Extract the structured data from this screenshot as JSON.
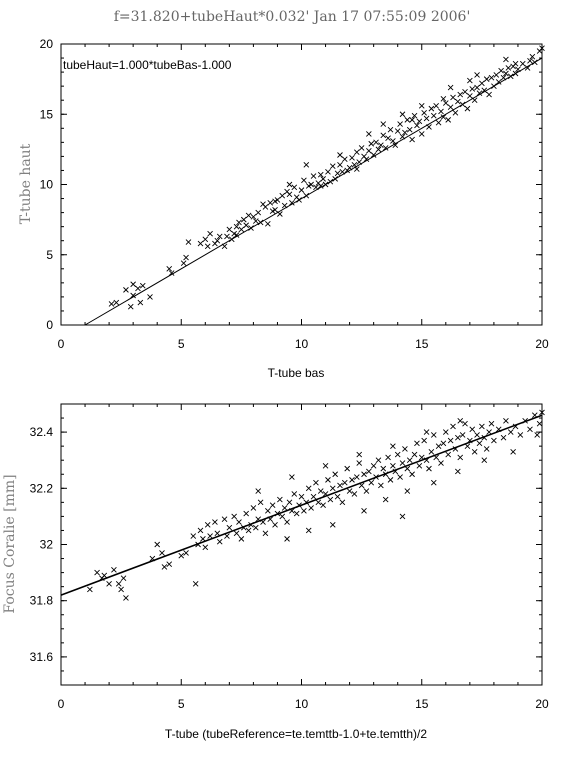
{
  "title": "f=31.820+tubeHaut*0.032'   Jan 17 07:55:09 2006'",
  "chart_data": [
    {
      "type": "scatter",
      "xlabel": "T-tube bas",
      "ylabel": "T-tube haut",
      "annotation": "tubeHaut=1.000*tubeBas-1.000",
      "xlim": [
        0,
        20
      ],
      "ylim": [
        0,
        20
      ],
      "xticks": [
        "0",
        "5",
        "10",
        "15",
        "20"
      ],
      "yticks": [
        "0",
        "5",
        "10",
        "15",
        "20"
      ],
      "marker": "x",
      "line": {
        "slope": 1.0,
        "intercept": -1.0,
        "x_range": [
          1,
          20
        ]
      },
      "points": [
        [
          2.1,
          1.5
        ],
        [
          2.3,
          1.6
        ],
        [
          2.7,
          2.5
        ],
        [
          2.9,
          1.3
        ],
        [
          3.0,
          2.9
        ],
        [
          3.0,
          2.1
        ],
        [
          3.2,
          2.6
        ],
        [
          3.4,
          2.8
        ],
        [
          3.7,
          2.0
        ],
        [
          3.3,
          1.6
        ],
        [
          4.5,
          4.0
        ],
        [
          4.6,
          3.7
        ],
        [
          5.1,
          4.4
        ],
        [
          5.2,
          4.8
        ],
        [
          5.3,
          5.9
        ],
        [
          5.8,
          5.8
        ],
        [
          6.0,
          6.1
        ],
        [
          6.2,
          6.5
        ],
        [
          6.4,
          5.8
        ],
        [
          6.5,
          6.0
        ],
        [
          6.6,
          6.3
        ],
        [
          6.8,
          5.6
        ],
        [
          6.9,
          6.3
        ],
        [
          7.0,
          6.8
        ],
        [
          7.1,
          6.1
        ],
        [
          7.2,
          6.5
        ],
        [
          7.3,
          7.0
        ],
        [
          7.4,
          7.3
        ],
        [
          7.5,
          6.8
        ],
        [
          7.6,
          7.5
        ],
        [
          7.7,
          7.1
        ],
        [
          7.8,
          7.8
        ],
        [
          7.9,
          6.9
        ],
        [
          8.0,
          7.7
        ],
        [
          8.1,
          7.4
        ],
        [
          8.2,
          8.0
        ],
        [
          8.3,
          7.3
        ],
        [
          8.4,
          8.6
        ],
        [
          8.5,
          8.4
        ],
        [
          8.6,
          7.2
        ],
        [
          8.7,
          8.7
        ],
        [
          8.8,
          8.1
        ],
        [
          8.9,
          8.2
        ],
        [
          9.0,
          8.9
        ],
        [
          9.1,
          7.9
        ],
        [
          9.2,
          9.2
        ],
        [
          9.3,
          8.5
        ],
        [
          9.4,
          9.5
        ],
        [
          9.5,
          9.3
        ],
        [
          9.6,
          8.7
        ],
        [
          9.7,
          9.8
        ],
        [
          9.8,
          9.1
        ],
        [
          9.9,
          8.9
        ],
        [
          10.0,
          9.6
        ],
        [
          10.1,
          10.3
        ],
        [
          10.2,
          9.2
        ],
        [
          10.3,
          9.9
        ],
        [
          10.4,
          10.0
        ],
        [
          10.5,
          10.6
        ],
        [
          10.6,
          9.8
        ],
        [
          10.7,
          10.1
        ],
        [
          10.8,
          10.7
        ],
        [
          10.9,
          10.4
        ],
        [
          11.0,
          10.0
        ],
        [
          11.1,
          10.9
        ],
        [
          11.2,
          10.2
        ],
        [
          11.3,
          11.3
        ],
        [
          11.4,
          10.4
        ],
        [
          11.5,
          10.8
        ],
        [
          11.6,
          11.4
        ],
        [
          11.7,
          10.9
        ],
        [
          11.8,
          11.8
        ],
        [
          11.9,
          11.0
        ],
        [
          12.0,
          11.2
        ],
        [
          12.1,
          11.9
        ],
        [
          12.2,
          11.4
        ],
        [
          12.3,
          12.3
        ],
        [
          12.4,
          11.6
        ],
        [
          12.5,
          12.6
        ],
        [
          12.6,
          12.0
        ],
        [
          12.7,
          11.8
        ],
        [
          12.8,
          12.4
        ],
        [
          12.9,
          12.9
        ],
        [
          13.0,
          12.1
        ],
        [
          13.1,
          13.0
        ],
        [
          13.2,
          12.5
        ],
        [
          13.3,
          12.8
        ],
        [
          13.4,
          13.5
        ],
        [
          13.5,
          12.6
        ],
        [
          13.6,
          13.3
        ],
        [
          13.7,
          13.9
        ],
        [
          13.8,
          13.1
        ],
        [
          13.9,
          12.8
        ],
        [
          14.0,
          13.8
        ],
        [
          14.1,
          14.3
        ],
        [
          14.2,
          13.4
        ],
        [
          14.3,
          13.7
        ],
        [
          14.4,
          14.6
        ],
        [
          14.5,
          13.9
        ],
        [
          14.6,
          13.2
        ],
        [
          14.7,
          14.9
        ],
        [
          14.8,
          14.2
        ],
        [
          14.9,
          14.5
        ],
        [
          15.0,
          13.6
        ],
        [
          15.1,
          15.1
        ],
        [
          15.2,
          14.7
        ],
        [
          15.3,
          14.1
        ],
        [
          15.4,
          15.4
        ],
        [
          15.5,
          14.9
        ],
        [
          15.6,
          15.6
        ],
        [
          15.7,
          14.4
        ],
        [
          15.8,
          15.2
        ],
        [
          15.9,
          14.8
        ],
        [
          16.0,
          15.8
        ],
        [
          16.1,
          14.6
        ],
        [
          16.2,
          15.5
        ],
        [
          16.3,
          16.2
        ],
        [
          16.4,
          15.1
        ],
        [
          16.5,
          15.9
        ],
        [
          16.6,
          16.4
        ],
        [
          16.7,
          15.7
        ],
        [
          16.8,
          16.6
        ],
        [
          16.9,
          15.4
        ],
        [
          17.0,
          16.3
        ],
        [
          17.1,
          16.8
        ],
        [
          17.2,
          16.0
        ],
        [
          17.3,
          16.9
        ],
        [
          17.4,
          16.5
        ],
        [
          17.5,
          17.2
        ],
        [
          17.6,
          16.7
        ],
        [
          17.7,
          17.5
        ],
        [
          17.8,
          16.4
        ],
        [
          17.9,
          17.6
        ],
        [
          18.0,
          17.0
        ],
        [
          18.1,
          17.8
        ],
        [
          18.2,
          17.3
        ],
        [
          18.3,
          18.1
        ],
        [
          18.4,
          17.6
        ],
        [
          18.5,
          17.9
        ],
        [
          18.6,
          18.3
        ],
        [
          18.7,
          17.7
        ],
        [
          18.8,
          18.4
        ],
        [
          18.9,
          17.9
        ],
        [
          19.0,
          18.2
        ],
        [
          19.2,
          18.6
        ],
        [
          19.4,
          18.3
        ],
        [
          19.5,
          18.8
        ],
        [
          19.7,
          18.7
        ],
        [
          19.9,
          19.5
        ],
        [
          20.0,
          19.7
        ],
        [
          9.5,
          10.0
        ],
        [
          10.2,
          11.4
        ],
        [
          11.6,
          12.1
        ],
        [
          12.8,
          13.6
        ],
        [
          13.4,
          14.3
        ],
        [
          14.2,
          15.0
        ],
        [
          15.0,
          15.6
        ],
        [
          16.2,
          16.9
        ],
        [
          17.3,
          17.8
        ],
        [
          18.5,
          18.9
        ],
        [
          6.1,
          5.6
        ],
        [
          7.3,
          6.4
        ],
        [
          8.9,
          8.8
        ],
        [
          10.8,
          9.9
        ],
        [
          12.3,
          11.1
        ],
        [
          14.6,
          14.6
        ],
        [
          15.9,
          16.1
        ],
        [
          17.0,
          17.4
        ],
        [
          18.9,
          18.6
        ],
        [
          19.6,
          19.1
        ]
      ]
    },
    {
      "type": "scatter",
      "xlabel": "T-tube (tubeReference=te.temttb-1.0+te.temtth)/2",
      "ylabel": "Focus Coralie [mm]",
      "xlim": [
        0,
        20
      ],
      "ylim": [
        31.5,
        32.5
      ],
      "xticks": [
        "0",
        "5",
        "10",
        "15",
        "20"
      ],
      "yticks": [
        "31.6",
        "31.8",
        "32",
        "32.2",
        "32.4"
      ],
      "marker": "x",
      "line": {
        "slope": 0.032,
        "intercept": 31.82,
        "x_range": [
          0,
          20
        ]
      },
      "points": [
        [
          1.2,
          31.84
        ],
        [
          1.5,
          31.9
        ],
        [
          1.8,
          31.89
        ],
        [
          2.0,
          31.86
        ],
        [
          2.2,
          31.91
        ],
        [
          2.4,
          31.86
        ],
        [
          2.5,
          31.84
        ],
        [
          2.6,
          31.88
        ],
        [
          2.7,
          31.81
        ],
        [
          1.7,
          31.88
        ],
        [
          3.8,
          31.95
        ],
        [
          4.0,
          32.0
        ],
        [
          4.2,
          31.97
        ],
        [
          4.3,
          31.92
        ],
        [
          4.5,
          31.93
        ],
        [
          5.0,
          31.96
        ],
        [
          5.2,
          31.97
        ],
        [
          5.5,
          32.03
        ],
        [
          5.6,
          31.86
        ],
        [
          5.7,
          32.0
        ],
        [
          5.8,
          32.05
        ],
        [
          5.9,
          32.02
        ],
        [
          6.0,
          31.99
        ],
        [
          6.1,
          32.07
        ],
        [
          6.2,
          32.03
        ],
        [
          6.4,
          32.08
        ],
        [
          6.5,
          32.04
        ],
        [
          6.6,
          32.01
        ],
        [
          6.8,
          32.09
        ],
        [
          6.9,
          32.03
        ],
        [
          7.0,
          32.06
        ],
        [
          7.2,
          32.1
        ],
        [
          7.3,
          32.04
        ],
        [
          7.4,
          32.08
        ],
        [
          7.5,
          32.02
        ],
        [
          7.6,
          32.06
        ],
        [
          7.7,
          32.11
        ],
        [
          7.8,
          32.05
        ],
        [
          7.9,
          32.07
        ],
        [
          8.0,
          32.13
        ],
        [
          8.1,
          32.06
        ],
        [
          8.2,
          32.09
        ],
        [
          8.3,
          32.15
        ],
        [
          8.4,
          32.08
        ],
        [
          8.5,
          32.04
        ],
        [
          8.6,
          32.12
        ],
        [
          8.7,
          32.09
        ],
        [
          8.8,
          32.14
        ],
        [
          8.9,
          32.07
        ],
        [
          9.0,
          32.11
        ],
        [
          9.1,
          32.16
        ],
        [
          9.2,
          32.1
        ],
        [
          9.3,
          32.13
        ],
        [
          9.4,
          32.08
        ],
        [
          9.5,
          32.15
        ],
        [
          9.6,
          32.12
        ],
        [
          9.7,
          32.18
        ],
        [
          9.8,
          32.11
        ],
        [
          9.9,
          32.14
        ],
        [
          10.0,
          32.17
        ],
        [
          10.1,
          32.12
        ],
        [
          10.2,
          32.15
        ],
        [
          10.3,
          32.2
        ],
        [
          10.4,
          32.13
        ],
        [
          10.5,
          32.17
        ],
        [
          10.6,
          32.22
        ],
        [
          10.7,
          32.15
        ],
        [
          10.8,
          32.19
        ],
        [
          10.9,
          32.14
        ],
        [
          11.0,
          32.18
        ],
        [
          11.1,
          32.23
        ],
        [
          11.2,
          32.16
        ],
        [
          11.3,
          32.2
        ],
        [
          11.4,
          32.25
        ],
        [
          11.5,
          32.17
        ],
        [
          11.6,
          32.21
        ],
        [
          11.7,
          32.15
        ],
        [
          11.8,
          32.22
        ],
        [
          11.9,
          32.27
        ],
        [
          12.0,
          32.19
        ],
        [
          12.1,
          32.23
        ],
        [
          12.2,
          32.18
        ],
        [
          12.3,
          32.24
        ],
        [
          12.4,
          32.29
        ],
        [
          12.5,
          32.21
        ],
        [
          12.6,
          32.25
        ],
        [
          12.7,
          32.19
        ],
        [
          12.8,
          32.26
        ],
        [
          12.9,
          32.22
        ],
        [
          13.0,
          32.28
        ],
        [
          13.1,
          32.24
        ],
        [
          13.2,
          32.3
        ],
        [
          13.3,
          32.21
        ],
        [
          13.4,
          32.27
        ],
        [
          13.5,
          32.25
        ],
        [
          13.6,
          32.31
        ],
        [
          13.7,
          32.23
        ],
        [
          13.8,
          32.28
        ],
        [
          13.9,
          32.26
        ],
        [
          14.0,
          32.32
        ],
        [
          14.1,
          32.24
        ],
        [
          14.2,
          32.29
        ],
        [
          14.3,
          32.34
        ],
        [
          14.4,
          32.27
        ],
        [
          14.5,
          32.3
        ],
        [
          14.6,
          32.25
        ],
        [
          14.7,
          32.32
        ],
        [
          14.8,
          32.36
        ],
        [
          14.9,
          32.28
        ],
        [
          15.0,
          32.31
        ],
        [
          15.1,
          32.37
        ],
        [
          15.2,
          32.3
        ],
        [
          15.3,
          32.27
        ],
        [
          15.4,
          32.33
        ],
        [
          15.5,
          32.39
        ],
        [
          15.6,
          32.31
        ],
        [
          15.7,
          32.35
        ],
        [
          15.8,
          32.29
        ],
        [
          15.9,
          32.36
        ],
        [
          16.0,
          32.4
        ],
        [
          16.1,
          32.32
        ],
        [
          16.2,
          32.37
        ],
        [
          16.3,
          32.42
        ],
        [
          16.4,
          32.34
        ],
        [
          16.5,
          32.38
        ],
        [
          16.6,
          32.31
        ],
        [
          16.7,
          32.39
        ],
        [
          16.8,
          32.43
        ],
        [
          16.9,
          32.35
        ],
        [
          17.0,
          32.37
        ],
        [
          17.1,
          32.41
        ],
        [
          17.2,
          32.33
        ],
        [
          17.3,
          32.39
        ],
        [
          17.4,
          32.36
        ],
        [
          17.5,
          32.42
        ],
        [
          17.6,
          32.38
        ],
        [
          17.7,
          32.34
        ],
        [
          17.8,
          32.4
        ],
        [
          17.9,
          32.43
        ],
        [
          18.0,
          32.37
        ],
        [
          18.2,
          32.41
        ],
        [
          18.4,
          32.38
        ],
        [
          18.5,
          32.44
        ],
        [
          18.7,
          32.4
        ],
        [
          18.9,
          32.42
        ],
        [
          19.1,
          32.39
        ],
        [
          19.3,
          32.44
        ],
        [
          19.5,
          32.41
        ],
        [
          19.7,
          32.46
        ],
        [
          19.9,
          32.43
        ],
        [
          20.0,
          32.47
        ],
        [
          9.4,
          32.02
        ],
        [
          10.3,
          32.05
        ],
        [
          11.3,
          32.07
        ],
        [
          12.6,
          32.12
        ],
        [
          13.5,
          32.16
        ],
        [
          14.4,
          32.19
        ],
        [
          15.5,
          32.22
        ],
        [
          16.5,
          32.26
        ],
        [
          17.6,
          32.3
        ],
        [
          8.2,
          32.19
        ],
        [
          9.6,
          32.24
        ],
        [
          11.0,
          32.28
        ],
        [
          12.4,
          32.32
        ],
        [
          13.8,
          32.35
        ],
        [
          15.2,
          32.4
        ],
        [
          16.6,
          32.44
        ],
        [
          14.2,
          32.1
        ],
        [
          18.8,
          32.33
        ],
        [
          19.8,
          32.39
        ]
      ]
    }
  ]
}
